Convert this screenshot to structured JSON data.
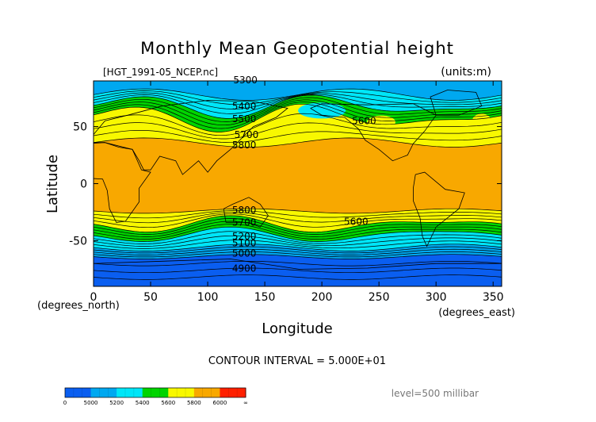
{
  "title": "Monthly Mean Geopotential height",
  "file_label": "[HGT_1991-05_NCEP.nc]",
  "units_label": "(units:m)",
  "contour_interval": "CONTOUR INTERVAL = 5.000E+01",
  "level_label": "level=500 millibar",
  "chart_data": {
    "type": "heatmap",
    "title": "Monthly Mean Geopotential height",
    "xlabel": "Longitude",
    "ylabel": "Latitude",
    "x_units": "(degrees_east)",
    "y_units": "(degrees_north)",
    "xlim": [
      0,
      357.5
    ],
    "ylim": [
      -90,
      90
    ],
    "x_ticks": [
      0,
      50,
      100,
      150,
      200,
      250,
      300,
      350
    ],
    "y_ticks": [
      -50,
      0,
      50
    ],
    "contour_labels": [
      {
        "text": "5300",
        "lon": 133,
        "lat": 88
      },
      {
        "text": "5400",
        "lon": 132,
        "lat": 65
      },
      {
        "text": "5500",
        "lon": 132,
        "lat": 54
      },
      {
        "text": "5600",
        "lon": 237,
        "lat": 52
      },
      {
        "text": "5700",
        "lon": 134,
        "lat": 40
      },
      {
        "text": "5800",
        "lon": 132,
        "lat": 31
      },
      {
        "text": "5800",
        "lon": 132,
        "lat": -26
      },
      {
        "text": "5700",
        "lon": 132,
        "lat": -37
      },
      {
        "text": "5600",
        "lon": 230,
        "lat": -36
      },
      {
        "text": "5200",
        "lon": 132,
        "lat": -49
      },
      {
        "text": "5100",
        "lon": 132,
        "lat": -55
      },
      {
        "text": "5000",
        "lon": 132,
        "lat": -64
      },
      {
        "text": "4900",
        "lon": 132,
        "lat": -77
      }
    ],
    "colorbar": {
      "tick_labels": [
        "0",
        "5000",
        "5200",
        "5400",
        "5600",
        "5800",
        "6000",
        "∞"
      ],
      "colors": [
        "#0a5ef0",
        "#00a8f0",
        "#00e6f8",
        "#00d400",
        "#f8f800",
        "#f8a800",
        "#ff2000"
      ]
    }
  }
}
